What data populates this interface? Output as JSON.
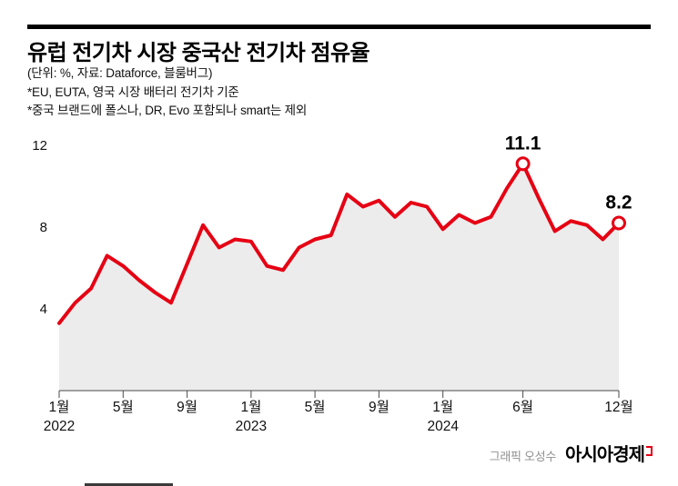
{
  "header": {
    "title": "유럽 전기차 시장 중국산 전기차 점유율",
    "notes": [
      "(단위: %, 자료: Dataforce, 블룸버그)",
      "*EU, EUTA, 영국 시장 배터리 전기차 기준",
      "*중국 브랜드에 폴스나, DR, Evo 포함되나 smart는 제외"
    ]
  },
  "footer": {
    "credit": "그래픽 오성수",
    "brand": "아시아경제"
  },
  "chart_data": {
    "type": "area",
    "title": "유럽 전기차 시장 중국산 전기차 점유율",
    "unit": "%",
    "x_range": "2022-01 ~ 2024-12",
    "values": [
      3.3,
      4.3,
      5.0,
      6.6,
      6.1,
      5.4,
      4.8,
      4.3,
      6.2,
      8.1,
      7.0,
      7.4,
      7.3,
      6.1,
      5.9,
      7.0,
      7.4,
      7.6,
      9.6,
      9.0,
      9.3,
      8.5,
      9.2,
      9.0,
      7.9,
      8.6,
      8.2,
      8.5,
      9.9,
      11.1,
      9.4,
      7.8,
      8.3,
      8.1,
      7.4,
      8.2
    ],
    "ylim": [
      0,
      12
    ],
    "yticks": [
      4,
      8,
      12
    ],
    "xticks": [
      {
        "index": 0,
        "label": "1월",
        "year": "2022"
      },
      {
        "index": 4,
        "label": "5월"
      },
      {
        "index": 8,
        "label": "9월"
      },
      {
        "index": 12,
        "label": "1월",
        "year": "2023"
      },
      {
        "index": 16,
        "label": "5월"
      },
      {
        "index": 20,
        "label": "9월"
      },
      {
        "index": 24,
        "label": "1월",
        "year": "2024"
      },
      {
        "index": 29,
        "label": "6월"
      },
      {
        "index": 35,
        "label": "12월"
      }
    ],
    "annotations": [
      {
        "index": 29,
        "label": "11.1"
      },
      {
        "index": 35,
        "label": "8.2"
      }
    ],
    "line_color": "#e60013",
    "fill_color": "#ececec",
    "axis_color": "#4a4a4a",
    "grid": false,
    "legend": false
  }
}
